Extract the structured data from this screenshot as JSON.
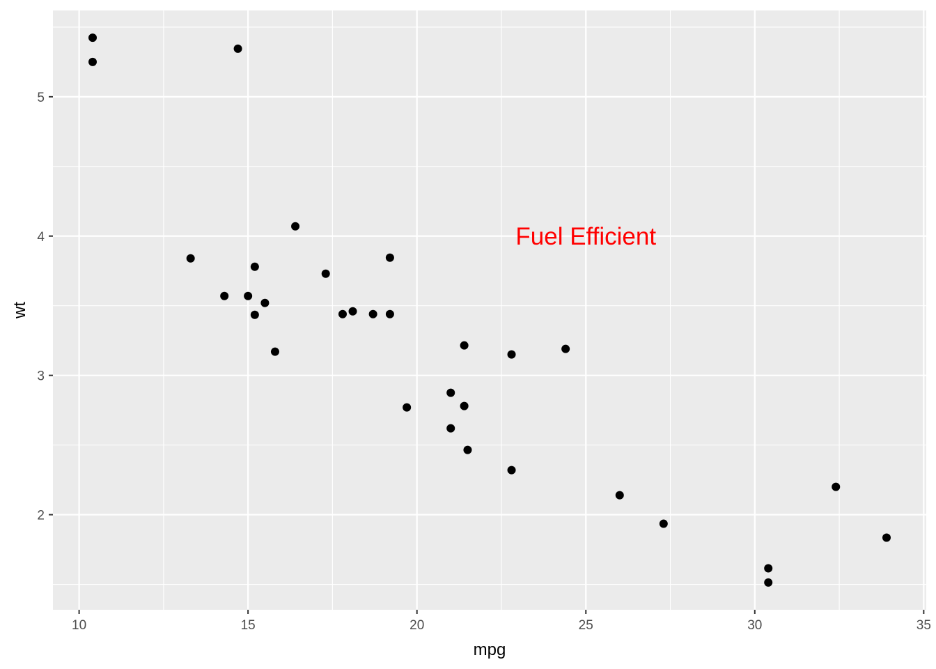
{
  "chart_data": {
    "type": "scatter",
    "x_label": "mpg",
    "y_label": "wt",
    "x": [
      21.0,
      21.0,
      22.8,
      21.4,
      18.7,
      18.1,
      14.3,
      24.4,
      22.8,
      19.2,
      17.8,
      16.4,
      17.3,
      15.2,
      10.4,
      10.4,
      14.7,
      32.4,
      30.4,
      33.9,
      21.5,
      15.5,
      15.2,
      13.3,
      19.2,
      27.3,
      26.0,
      30.4,
      15.8,
      19.7,
      15.0,
      21.4
    ],
    "values": [
      2.62,
      2.875,
      2.32,
      3.215,
      3.44,
      3.46,
      3.57,
      3.19,
      3.15,
      3.44,
      3.44,
      4.07,
      3.73,
      3.78,
      5.25,
      5.424,
      5.345,
      2.2,
      1.615,
      1.835,
      2.465,
      3.52,
      3.435,
      3.84,
      3.845,
      1.935,
      2.14,
      1.513,
      3.17,
      2.77,
      3.57,
      2.78
    ],
    "color": "#000000",
    "xlim": [
      9.225,
      35.075
    ],
    "ylim": [
      1.3175,
      5.6196
    ],
    "xticks": [
      10,
      15,
      20,
      25,
      30,
      35
    ],
    "yticks": [
      2,
      3,
      4,
      5
    ],
    "x_minor_breaks": [
      12.5,
      17.5,
      22.5,
      27.5,
      32.5
    ],
    "y_minor_breaks": [
      1.5,
      2.5,
      3.5,
      4.5,
      5.5
    ],
    "grid": true,
    "annotation": {
      "text": "Fuel Efficient",
      "x": 25,
      "y": 4,
      "color": "#ff0000"
    }
  }
}
